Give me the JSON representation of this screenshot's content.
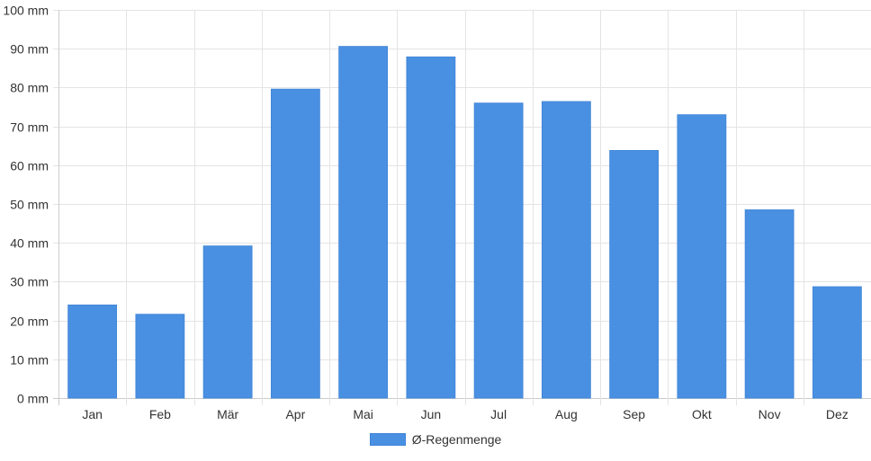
{
  "chart_data": {
    "type": "bar",
    "categories": [
      "Jan",
      "Feb",
      "Mär",
      "Apr",
      "Mai",
      "Jun",
      "Jul",
      "Aug",
      "Sep",
      "Okt",
      "Nov",
      "Dez"
    ],
    "series": [
      {
        "name": "Ø-Regenmenge",
        "color": "#4a90e2",
        "values": [
          24,
          21.6,
          39.2,
          79.6,
          90.6,
          87.9,
          76,
          76.4,
          63.8,
          73,
          48.5,
          28.7
        ]
      }
    ],
    "ylim": [
      0,
      100
    ],
    "yticks": [
      0,
      10,
      20,
      30,
      40,
      50,
      60,
      70,
      80,
      90,
      100
    ],
    "y_unit": "mm",
    "ytick_labels": [
      "0 mm",
      "10 mm",
      "20 mm",
      "30 mm",
      "40 mm",
      "50 mm",
      "60 mm",
      "70 mm",
      "80 mm",
      "90 mm",
      "100 mm"
    ],
    "grid": true,
    "legend_position": "bottom"
  },
  "legend": {
    "label": "Ø-Regenmenge",
    "color": "#4a90e2"
  }
}
